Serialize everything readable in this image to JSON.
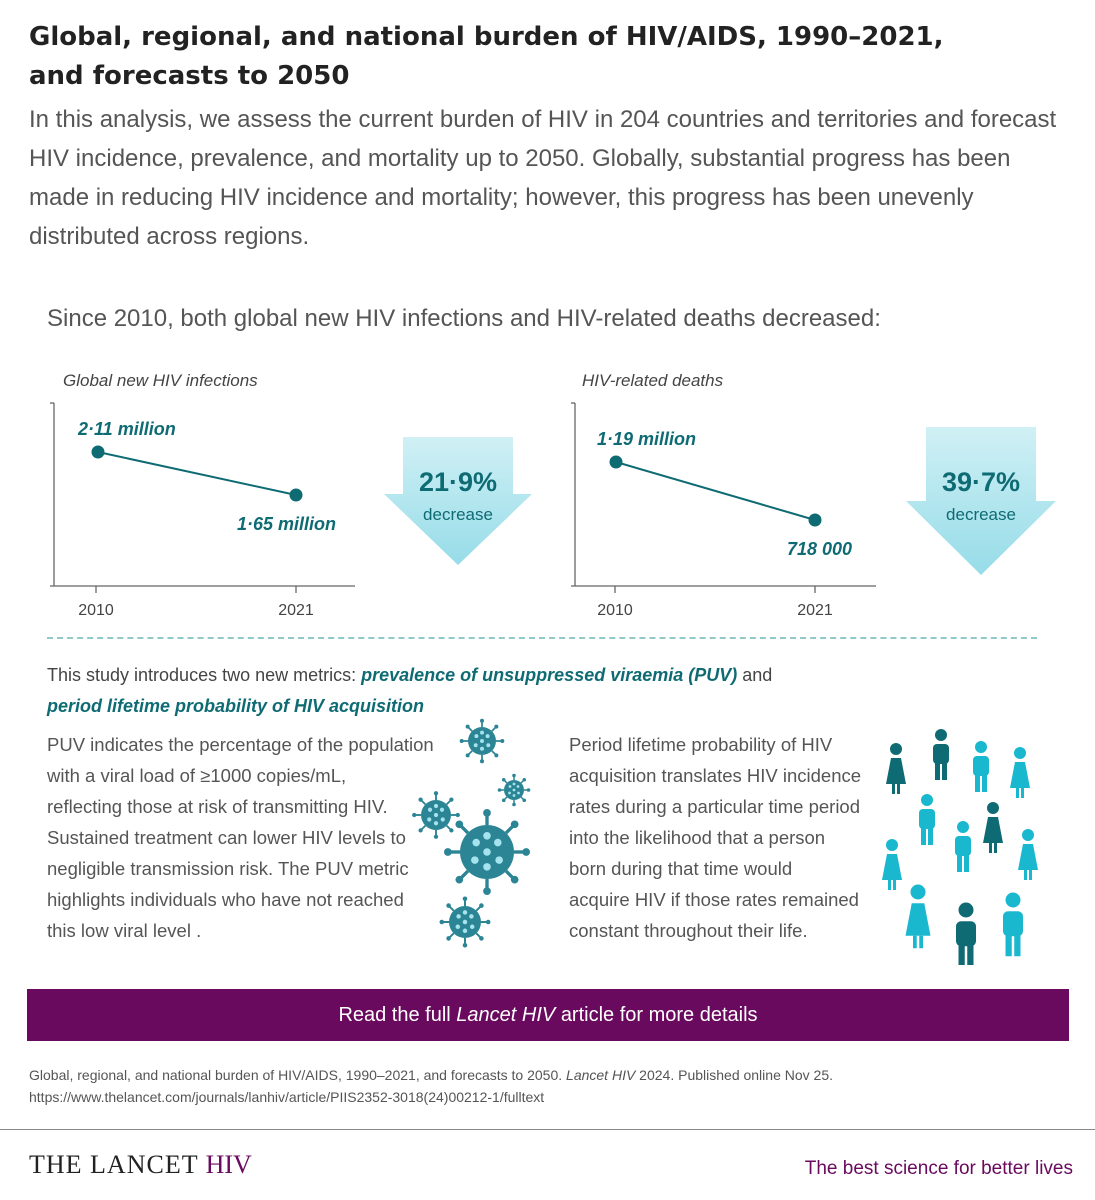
{
  "header": {
    "title_line1": "Global, regional, and national burden of HIV/AIDS, 1990–2021,",
    "title_line2": "and forecasts to 2050",
    "intro": "In this analysis, we assess the current burden of HIV in 204 countries and territories and forecast HIV incidence, prevalence, and mortality up to 2050. Globally, substantial progress has been made in reducing HIV incidence and mortality; however, this progress has been unevenly distributed across regions."
  },
  "since_text": "Since 2010, both global new HIV infections and HIV-related deaths decreased:",
  "chart_data": [
    {
      "type": "line",
      "title": "Global new HIV infections",
      "x": [
        "2010",
        "2021"
      ],
      "values": [
        2.11,
        1.65
      ],
      "unit": "million",
      "point_labels": [
        "2·11 million",
        "1·65 million"
      ],
      "change_value": "21·9%",
      "change_label": "decrease",
      "color": "#0f6b73"
    },
    {
      "type": "line",
      "title": "HIV-related deaths",
      "x": [
        "2010",
        "2021"
      ],
      "values": [
        1.19,
        0.718
      ],
      "unit": "million",
      "point_labels": [
        "1·19 million",
        "718 000"
      ],
      "change_value": "39·7%",
      "change_label": "decrease",
      "color": "#0f6b73"
    }
  ],
  "metrics": {
    "intro_prefix": "This study introduces two new metrics: ",
    "metric1": "prevalence of unsuppressed viraemia (PUV)",
    "joiner": " and",
    "metric2": "period lifetime probability of HIV acquisition",
    "puv_lines": [
      "PUV indicates the percentage of the population",
      "with a viral load of ≥1000 copies/mL,",
      "reflecting those at risk of transmitting HIV.",
      "Sustained treatment can lower HIV levels to",
      "negligible transmission risk. The PUV metric",
      "highlights individuals who have not reached",
      "this low viral level ."
    ],
    "period_lines": [
      "Period lifetime probability of HIV",
      "acquisition translates HIV incidence",
      "rates during a particular time period",
      "into the likelihood that a person",
      "born during that time would",
      "acquire HIV if those rates remained",
      "constant throughout their life."
    ]
  },
  "icons": {
    "virus": "virus-icon",
    "people": "person-icon"
  },
  "colors": {
    "teal_dark": "#0f6b73",
    "teal_light": "#1ab8cf",
    "purple": "#6a0a5e",
    "arrow_top": "#c6ecf3",
    "arrow_bottom": "#9fdfe9"
  },
  "banner": {
    "prefix": "Read the full ",
    "journal": "Lancet HIV",
    "suffix": " article for more details"
  },
  "citation": {
    "line1_prefix": "Global, regional, and national burden of HIV/AIDS, 1990–2021, and forecasts to 2050. ",
    "line1_journal": "Lancet HIV",
    "line1_suffix": " 2024. Published online Nov 25.",
    "url": "https://www.thelancet.com/journals/lanhiv/article/PIIS2352-3018(24)00212-1/fulltext"
  },
  "footer": {
    "brand_main": "THE LANCET ",
    "brand_hiv": "HIV",
    "slogan": "The best science for better lives"
  }
}
